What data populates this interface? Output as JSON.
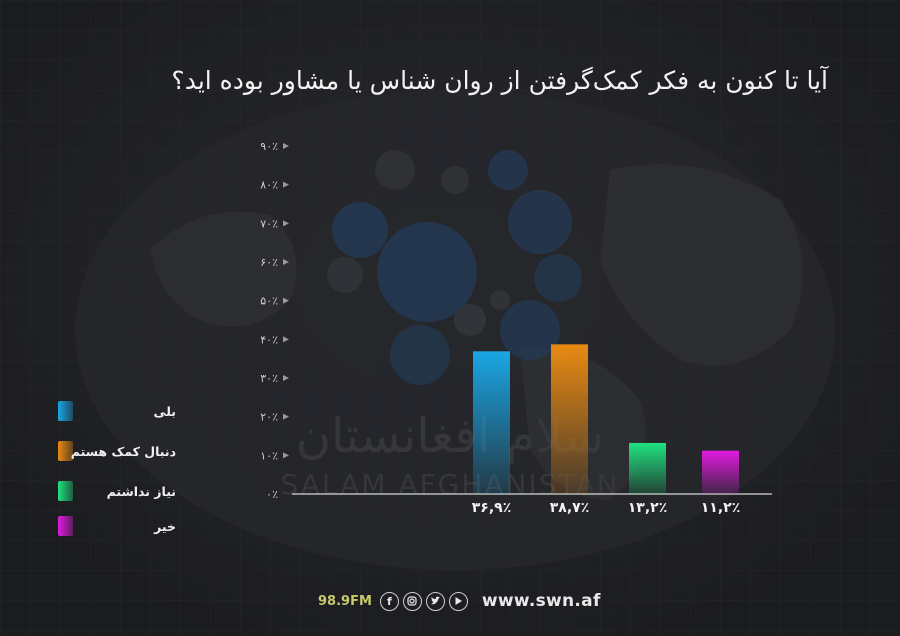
{
  "title": "آیا تا کنون به فکر کمک‌گرفتن از روان شناس یا مشاور بوده اید؟",
  "watermark": {
    "arabic": "سلام افغانستان",
    "latin": "SALAM AFGHANISTAN"
  },
  "footer": {
    "frequency": "98.9FM",
    "website": "www.swn.af",
    "social_icons": [
      "facebook-icon",
      "instagram-icon",
      "twitter-icon",
      "youtube-icon"
    ]
  },
  "chart_data": {
    "type": "bar",
    "title": "آیا تا کنون به فکر کمک‌گرفتن از روان شناس یا مشاور بوده اید؟",
    "categories": [
      "بلی",
      "دنبال کمک هستم",
      "نیاز نداشتم",
      "خیر"
    ],
    "values": [
      36.9,
      38.7,
      13.2,
      11.2
    ],
    "value_labels": [
      "۳۶,۹٪",
      "۳۸,۷٪",
      "۱۳,۲٪",
      "۱۱,۲٪"
    ],
    "colors": [
      "#1aa6e4",
      "#e98a12",
      "#1ee27f",
      "#e21ae0"
    ],
    "ylim": [
      0,
      90
    ],
    "yticks": [
      0,
      10,
      20,
      30,
      40,
      50,
      60,
      70,
      80,
      90
    ],
    "ytick_labels": [
      "۰٪",
      "۱۰٪",
      "۲۰٪",
      "۳۰٪",
      "۴۰٪",
      "۵۰٪",
      "۶۰٪",
      "۷۰٪",
      "۸۰٪",
      "۹۰٪"
    ],
    "legend": [
      "بلی",
      "دنبال کمک هستم",
      "نیاز نداشتم",
      "خیر"
    ],
    "legend_position": "left",
    "grid": false
  }
}
